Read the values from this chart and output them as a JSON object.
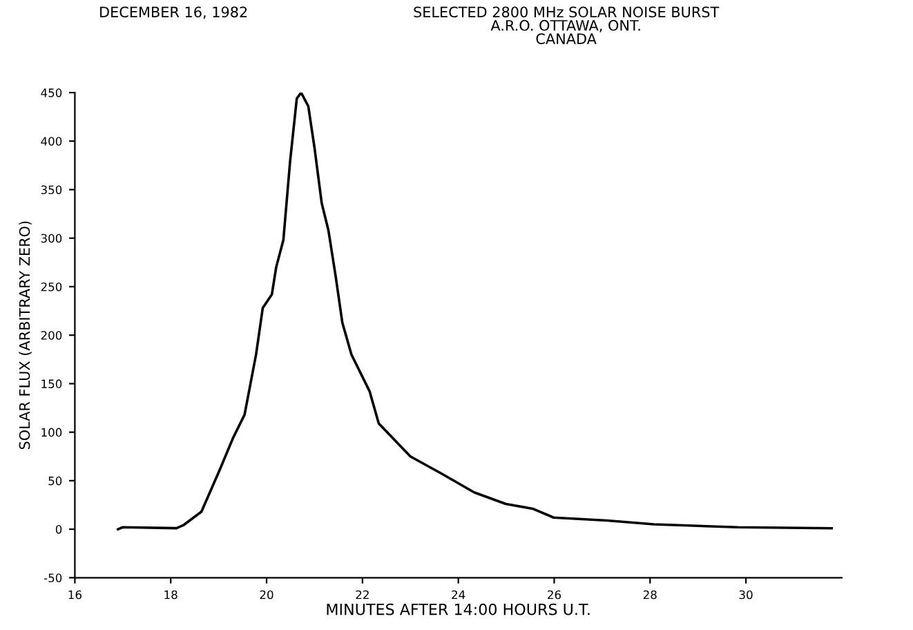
{
  "chart_data": {
    "type": "line",
    "title": "SELECTED 2800 MHz SOLAR NOISE BURST\nA.R.O. OTTAWA, ONT.\nCANADA",
    "subtitle": "DECEMBER 16, 1982",
    "xlabel": "MINUTES AFTER 14:00 HOURS U.T.",
    "ylabel": "SOLAR FLUX (ARBITRARY ZERO)",
    "series": [
      {
        "color": "#000000",
        "x": [
          16.9,
          17.0,
          18.12,
          18.26,
          18.64,
          19.02,
          19.3,
          19.54,
          19.78,
          19.92,
          20.11,
          20.2,
          20.35,
          20.49,
          20.63,
          20.72,
          20.87,
          21.0,
          21.15,
          21.29,
          21.44,
          21.58,
          21.77,
          22.15,
          22.34,
          23.0,
          23.66,
          24.33,
          24.99,
          25.56,
          25.99,
          27.1,
          28.08,
          29.83,
          31.79
        ],
        "values": [
          0,
          2,
          1,
          4,
          18,
          61,
          94,
          118,
          180,
          228,
          242,
          270,
          298,
          379,
          444,
          450,
          436,
          393,
          336,
          308,
          261,
          213,
          180,
          142,
          109,
          75,
          57,
          38,
          26,
          21,
          12,
          9,
          5,
          2,
          1
        ]
      }
    ],
    "xlim": [
      16,
      32
    ],
    "xticks": [
      16,
      18,
      20,
      22,
      24,
      26,
      28,
      30
    ],
    "ylim": [
      -50,
      450
    ],
    "yticks": [
      -50,
      0,
      50,
      100,
      150,
      200,
      250,
      300,
      350,
      400,
      450
    ],
    "grid": false,
    "legend": false,
    "marker": "none",
    "line_style": "solid"
  }
}
